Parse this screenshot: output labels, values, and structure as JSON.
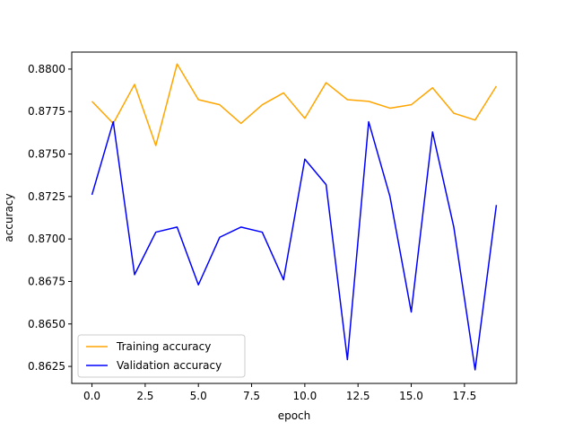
{
  "chart_data": {
    "type": "line",
    "title": "",
    "xlabel": "epoch",
    "ylabel": "accuracy",
    "xlim": [
      -0.95,
      19.95
    ],
    "ylim": [
      0.8615,
      0.881
    ],
    "xticks": [
      0.0,
      2.5,
      5.0,
      7.5,
      10.0,
      12.5,
      15.0,
      17.5
    ],
    "xtick_labels": [
      "0.0",
      "2.5",
      "5.0",
      "7.5",
      "10.0",
      "12.5",
      "15.0",
      "17.5"
    ],
    "yticks": [
      0.8625,
      0.865,
      0.8675,
      0.87,
      0.8725,
      0.875,
      0.8775,
      0.88
    ],
    "ytick_labels": [
      "0.8625",
      "0.8650",
      "0.8675",
      "0.8700",
      "0.8725",
      "0.8750",
      "0.8775",
      "0.8800"
    ],
    "grid": false,
    "legend_position": "lower-left",
    "x": [
      0,
      1,
      2,
      3,
      4,
      5,
      6,
      7,
      8,
      9,
      10,
      11,
      12,
      13,
      14,
      15,
      16,
      17,
      18,
      19
    ],
    "series": [
      {
        "name": "Training accuracy",
        "color": "#ffa500",
        "values": [
          0.8781,
          0.8768,
          0.8791,
          0.8755,
          0.8803,
          0.8782,
          0.8779,
          0.8768,
          0.8779,
          0.8786,
          0.8771,
          0.8792,
          0.8782,
          0.8781,
          0.8777,
          0.8779,
          0.8789,
          0.8774,
          0.877,
          0.879
        ]
      },
      {
        "name": "Validation accuracy",
        "color": "#0000ff",
        "values": [
          0.8726,
          0.8769,
          0.8679,
          0.8704,
          0.8707,
          0.8673,
          0.8701,
          0.8707,
          0.8704,
          0.8676,
          0.8747,
          0.8732,
          0.8629,
          0.8769,
          0.8725,
          0.8657,
          0.8763,
          0.8707,
          0.8623,
          0.872
        ]
      }
    ]
  }
}
